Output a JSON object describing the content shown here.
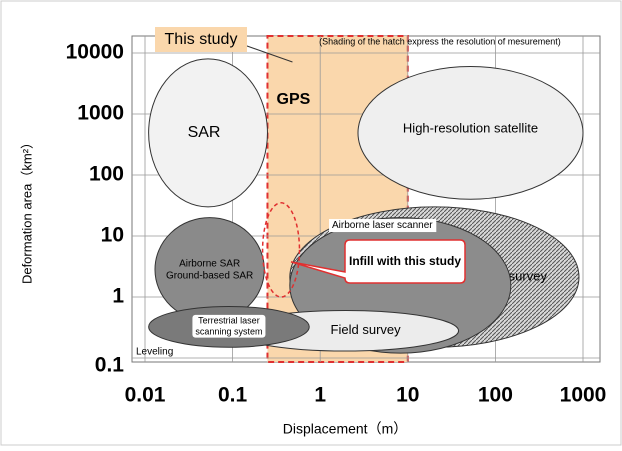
{
  "chart_data": {
    "type": "region",
    "note": "(Shading of the hatch express the resolution of mesurement)",
    "xlabel": "Displacement（m）",
    "ylabel": "Deformation area（km²）",
    "xlim": [
      0.01,
      1000
    ],
    "xticks": [
      0.01,
      0.1,
      1,
      10,
      100,
      1000
    ],
    "ylim": [
      0.1,
      10000
    ],
    "yticks": [
      0.1,
      1,
      10,
      100,
      1000,
      10000
    ],
    "log": true,
    "band": {
      "name": "GPS",
      "label": "This study",
      "color": "#fad7ac",
      "x": [
        0.25,
        10
      ]
    },
    "regions": [
      {
        "name": "Aerial survey",
        "fill": "hatch",
        "x": [
          0.45,
          900
        ],
        "y": [
          0.15,
          30
        ]
      },
      {
        "name": "High-resolution satellite",
        "fill": "#efefef",
        "x": [
          2.7,
          1000
        ],
        "y": [
          40,
          6000
        ]
      },
      {
        "name": "SAR",
        "fill": "#f2f2f2",
        "x": [
          0.011,
          0.25
        ],
        "y": [
          30,
          8000
        ]
      },
      {
        "name": "Airborne laser scanner",
        "fill": "#8c8c8c",
        "x": [
          0.45,
          150
        ],
        "y": [
          0.12,
          20
        ]
      },
      {
        "name": "Airborne SAR Ground-based SAR",
        "fill": "#8a8a8a",
        "x": [
          0.013,
          0.23
        ],
        "y": [
          0.4,
          20
        ]
      },
      {
        "name": "Field survey",
        "fill": "#ececec",
        "x": [
          0.1,
          38
        ],
        "y": [
          0.13,
          0.6
        ]
      },
      {
        "name": "Terrestrial laser scanning system",
        "fill": "#7a7a7a",
        "x": [
          0.011,
          0.75
        ],
        "y": [
          0.15,
          0.7
        ]
      },
      {
        "name": "Infill with this study",
        "fill": "none",
        "x": [
          0.22,
          0.58
        ],
        "y": [
          1,
          35
        ]
      }
    ],
    "extra_label": "Leveling"
  }
}
